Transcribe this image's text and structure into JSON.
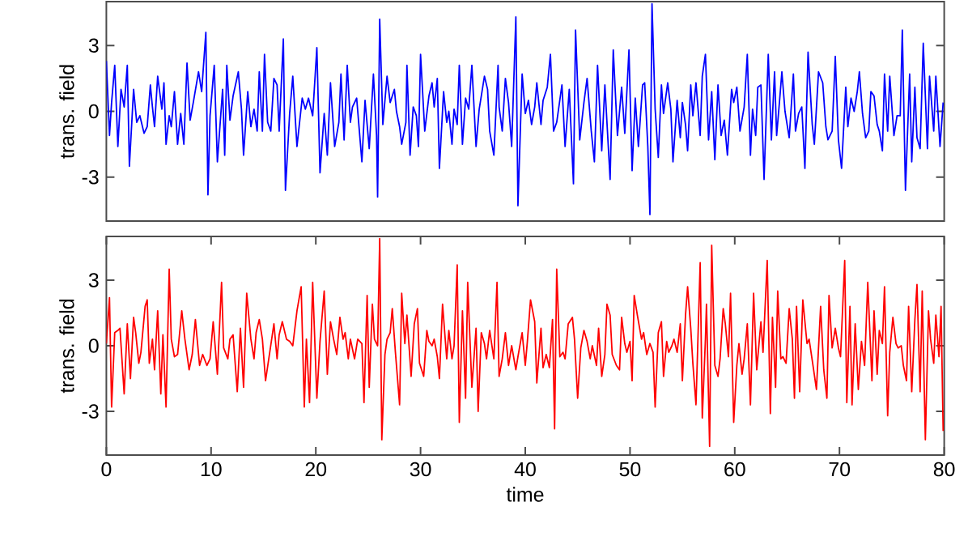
{
  "chart_data": [
    {
      "type": "line",
      "ylabel": "trans. field",
      "xlim": [
        0,
        80
      ],
      "ylim": [
        -5,
        5
      ],
      "yticks": [
        -3,
        0,
        3
      ],
      "tick_labels": "y",
      "series": [
        {
          "color": "#0000ff",
          "x": [
            0.0,
            0.3,
            0.5,
            0.8,
            1.1,
            1.4,
            1.7,
            2.0,
            2.2,
            2.6,
            2.9,
            3.2,
            3.6,
            3.9,
            4.2,
            4.4,
            4.6,
            4.9,
            5.3,
            5.5,
            5.7,
            6.0,
            6.2,
            6.5,
            6.8,
            7.1,
            7.4,
            7.7,
            8.0,
            8.3,
            8.8,
            9.1,
            9.5,
            9.7,
            9.9,
            10.3,
            10.6,
            11.1,
            11.3,
            11.5,
            11.8,
            12.1,
            12.6,
            12.9,
            13.1,
            13.5,
            13.8,
            14.1,
            14.4,
            14.6,
            14.9,
            15.1,
            15.4,
            15.7,
            16.0,
            16.3,
            16.5,
            16.9,
            17.1,
            17.5,
            17.8,
            18.2,
            18.7,
            19.0,
            19.3,
            19.7,
            20.1,
            20.4,
            20.8,
            21.1,
            21.4,
            21.8,
            22.2,
            22.4,
            22.7,
            23.0,
            23.3,
            23.5,
            23.9,
            24.4,
            24.7,
            25.1,
            25.5,
            25.8,
            25.9,
            26.1,
            26.4,
            26.8,
            27.1,
            27.5,
            27.7,
            28.0,
            28.2,
            28.6,
            28.7,
            29.0,
            29.3,
            29.6,
            29.8,
            30.0,
            30.4,
            30.8,
            31.1,
            31.3,
            31.6,
            31.8,
            32.2,
            32.5,
            32.7,
            33.0,
            33.2,
            33.5,
            33.7,
            34.0,
            34.3,
            34.6,
            34.9,
            35.3,
            35.6,
            36.1,
            36.4,
            36.6,
            37.0,
            37.4,
            37.5,
            37.8,
            38.1,
            38.4,
            38.7,
            39.1,
            39.3,
            39.7,
            40.0,
            40.3,
            40.6,
            40.9,
            41.1,
            41.5,
            41.7,
            42.1,
            42.4,
            42.7,
            43.0,
            43.5,
            43.8,
            44.2,
            44.6,
            44.8,
            45.2,
            45.6,
            45.9,
            46.3,
            46.6,
            46.9,
            47.3,
            47.6,
            48.1,
            48.4,
            48.8,
            49.2,
            49.5,
            49.9,
            50.2,
            50.5,
            50.8,
            51.2,
            51.4,
            51.7,
            51.9,
            52.1,
            52.4,
            52.7,
            53.0,
            53.2,
            53.6,
            53.9,
            54.1,
            54.5,
            54.8,
            55.0,
            55.3,
            55.5,
            55.8,
            56.0,
            56.3,
            56.7,
            56.9,
            57.2,
            57.5,
            57.8,
            58.1,
            58.4,
            58.7,
            59.0,
            59.3,
            59.7,
            59.9,
            60.2,
            60.5,
            60.9,
            61.2,
            61.5,
            61.7,
            62.0,
            62.2,
            62.5,
            62.8,
            63.2,
            63.5,
            63.8,
            64.0,
            64.3,
            64.5,
            64.8,
            65.2,
            65.6,
            65.8,
            66.1,
            66.4,
            66.7,
            67.0,
            67.4,
            67.6,
            68.0,
            68.4,
            68.7,
            68.9,
            69.3,
            69.6,
            69.9,
            70.2,
            70.6,
            70.8,
            71.1,
            71.4,
            71.7,
            71.9,
            72.2,
            72.5,
            72.8,
            73.0,
            73.3,
            73.6,
            73.8,
            74.1,
            74.3,
            74.6,
            74.8,
            75.2,
            75.5,
            75.8,
            76.0,
            76.3,
            76.7,
            76.9,
            77.2,
            77.4,
            77.7,
            78.0,
            78.4,
            78.6,
            79.0,
            79.2,
            79.6,
            79.9
          ],
          "values": [
            2.3,
            -1.1,
            0.4,
            2.1,
            -1.6,
            1.0,
            0.2,
            2.1,
            -2.5,
            1.0,
            -0.5,
            -0.2,
            -1.0,
            -0.7,
            1.2,
            0.2,
            -0.7,
            1.6,
            0.1,
            1.3,
            -1.5,
            -0.2,
            -0.7,
            0.9,
            -1.5,
            -0.1,
            -1.5,
            2.2,
            -0.4,
            0.4,
            1.8,
            0.9,
            3.6,
            -3.8,
            -0.2,
            2.1,
            -2.3,
            1.0,
            -2.0,
            2.1,
            -0.4,
            0.7,
            1.8,
            0.1,
            -2.0,
            0.9,
            -0.7,
            0.1,
            -0.9,
            1.8,
            -0.9,
            2.6,
            -0.5,
            -0.9,
            1.5,
            1.2,
            -0.9,
            3.3,
            -3.6,
            -0.1,
            1.6,
            -1.6,
            0.6,
            0.1,
            0.6,
            -0.2,
            2.9,
            -2.8,
            -0.1,
            -2.0,
            1.3,
            -1.6,
            -0.5,
            1.7,
            -1.3,
            2.1,
            -0.5,
            0.2,
            0.6,
            -2.3,
            0.5,
            -1.7,
            1.7,
            -1.1,
            -3.9,
            4.2,
            -0.6,
            1.6,
            0.4,
            1.0,
            0.0,
            -0.7,
            -1.5,
            -0.5,
            2.1,
            -2.0,
            0.2,
            -0.2,
            -1.6,
            2.6,
            -0.9,
            0.7,
            1.3,
            0.2,
            1.5,
            -2.6,
            0.9,
            -0.5,
            0.0,
            -1.5,
            0.1,
            -0.6,
            2.1,
            -1.5,
            0.6,
            0.1,
            2.1,
            -1.6,
            0.1,
            1.6,
            1.0,
            -0.9,
            -2.0,
            2.1,
            0.2,
            -0.9,
            1.5,
            0.4,
            -1.6,
            4.3,
            -4.3,
            1.7,
            -0.1,
            0.5,
            -0.6,
            0.2,
            1.3,
            -0.6,
            0.5,
            1.1,
            2.6,
            -0.9,
            -0.5,
            1.2,
            -1.6,
            1.0,
            -3.3,
            3.7,
            -1.3,
            0.4,
            1.5,
            -0.9,
            -2.3,
            2.1,
            -1.8,
            1.2,
            -3.1,
            2.8,
            -1.1,
            1.1,
            -1.0,
            2.8,
            -2.7,
            0.6,
            -1.6,
            1.2,
            1.3,
            -1.6,
            -4.7,
            4.9,
            0.1,
            -2.1,
            1.2,
            -0.1,
            1.3,
            0.1,
            -2.3,
            0.5,
            -1.2,
            0.4,
            -0.6,
            -1.8,
            1.2,
            -0.2,
            1.3,
            -1.1,
            1.6,
            2.6,
            -1.3,
            0.9,
            -2.2,
            1.2,
            -1.1,
            -0.4,
            -2.0,
            1.0,
            0.4,
            1.1,
            -0.9,
            0.2,
            2.6,
            -2.0,
            0.1,
            -1.1,
            1.1,
            1.2,
            -3.1,
            2.6,
            -1.3,
            1.8,
            -1.1,
            0.6,
            1.8,
            0.0,
            -1.2,
            1.7,
            -0.9,
            -0.1,
            0.2,
            -2.6,
            2.7,
            -0.6,
            -1.5,
            1.8,
            1.3,
            -0.7,
            -1.3,
            -0.9,
            2.5,
            -1.3,
            -2.6,
            1.1,
            -0.7,
            0.6,
            0.0,
            0.9,
            1.8,
            -0.1,
            -1.2,
            -0.9,
            0.9,
            0.7,
            -0.6,
            -0.9,
            -1.8,
            1.7,
            -0.9,
            1.6,
            -1.1,
            -0.2,
            -0.2,
            3.7,
            -3.6,
            1.7,
            -2.3,
            1.1,
            -1.2,
            -1.7,
            3.1,
            -1.7,
            1.6,
            -0.9,
            1.6,
            -1.6,
            0.4
          ]
        }
      ]
    },
    {
      "type": "line",
      "xlabel": "time",
      "ylabel": "trans. field",
      "xlim": [
        0,
        80
      ],
      "xticks": [
        0,
        10,
        20,
        30,
        40,
        50,
        60,
        70,
        80
      ],
      "ylim": [
        -5,
        5
      ],
      "yticks": [
        -3,
        0,
        3
      ],
      "series": [
        {
          "color": "#ff0000",
          "x": [
            0.0,
            0.3,
            0.5,
            0.8,
            1.1,
            1.3,
            1.7,
            2.0,
            2.3,
            2.6,
            2.8,
            3.1,
            3.3,
            3.7,
            3.9,
            4.1,
            4.4,
            4.6,
            4.9,
            5.2,
            5.4,
            5.7,
            6.0,
            6.2,
            6.5,
            6.8,
            7.2,
            7.5,
            7.9,
            8.2,
            8.5,
            8.9,
            9.2,
            9.6,
            9.9,
            10.2,
            10.6,
            11.0,
            11.2,
            11.6,
            11.8,
            12.1,
            12.5,
            12.8,
            13.1,
            13.4,
            13.8,
            14.1,
            14.3,
            14.6,
            14.9,
            15.2,
            15.6,
            16.0,
            16.3,
            16.5,
            16.8,
            17.2,
            17.5,
            17.8,
            18.2,
            18.6,
            18.9,
            19.1,
            19.4,
            19.7,
            20.1,
            20.4,
            20.8,
            21.1,
            21.4,
            21.7,
            22.0,
            22.3,
            22.6,
            22.8,
            23.1,
            23.3,
            23.7,
            24.0,
            24.4,
            24.6,
            24.9,
            25.1,
            25.4,
            25.6,
            25.9,
            26.1,
            26.3,
            26.6,
            26.8,
            27.1,
            27.3,
            27.6,
            28.0,
            28.2,
            28.5,
            28.7,
            29.1,
            29.4,
            29.7,
            29.9,
            30.3,
            30.6,
            30.8,
            31.1,
            31.3,
            31.6,
            31.8,
            32.1,
            32.5,
            32.7,
            33.0,
            33.2,
            33.5,
            33.7,
            34.0,
            34.3,
            34.5,
            34.9,
            35.3,
            35.5,
            35.8,
            36.1,
            36.3,
            36.6,
            37.0,
            37.3,
            37.5,
            37.8,
            38.1,
            38.4,
            38.7,
            39.1,
            39.3,
            39.7,
            40.0,
            40.2,
            40.5,
            40.9,
            41.1,
            41.5,
            41.7,
            42.0,
            42.3,
            42.6,
            42.8,
            43.0,
            43.3,
            43.6,
            43.8,
            44.1,
            44.5,
            44.7,
            45.0,
            45.3,
            45.6,
            45.9,
            46.2,
            46.4,
            46.8,
            47.0,
            47.3,
            47.6,
            47.8,
            48.1,
            48.3,
            48.7,
            49.0,
            49.2,
            49.5,
            49.7,
            50.0,
            50.2,
            50.4,
            50.7,
            51.1,
            51.3,
            51.6,
            51.9,
            52.2,
            52.4,
            52.7,
            53.0,
            53.2,
            53.5,
            53.7,
            54.0,
            54.2,
            54.5,
            54.8,
            55.0,
            55.3,
            55.5,
            55.8,
            56.0,
            56.3,
            56.7,
            56.9,
            57.2,
            57.3,
            57.6,
            57.8,
            58.1,
            58.4,
            58.6,
            58.9,
            59.1,
            59.4,
            59.6,
            59.9,
            60.2,
            60.4,
            60.7,
            60.9,
            61.2,
            61.5,
            61.8,
            62.1,
            62.5,
            62.7,
            63.1,
            63.4,
            63.6,
            63.9,
            64.1,
            64.4,
            64.6,
            64.9,
            65.2,
            65.5,
            65.7,
            65.9,
            66.2,
            66.5,
            66.9,
            67.1,
            67.5,
            67.8,
            68.2,
            68.5,
            68.8,
            69.0,
            69.3,
            69.6,
            69.9,
            70.1,
            70.5,
            70.7,
            71.0,
            71.2,
            71.5,
            71.8,
            72.1,
            72.4,
            72.7,
            73.1,
            73.3,
            73.6,
            73.8,
            74.1,
            74.3,
            74.6,
            74.8,
            75.1,
            75.4,
            75.6,
            75.9,
            76.1,
            76.4,
            76.6,
            76.9,
            77.2,
            77.4,
            77.7,
            77.9,
            78.2,
            78.5,
            78.7,
            79.0,
            79.2,
            79.5,
            79.7,
            79.9
          ],
          "values": [
            0.1,
            2.2,
            -2.8,
            0.6,
            0.7,
            0.8,
            -2.2,
            1.0,
            -1.5,
            1.3,
            0.6,
            -0.8,
            -0.3,
            1.8,
            2.1,
            -0.8,
            0.3,
            -1.1,
            1.6,
            -2.2,
            0.5,
            -2.8,
            3.5,
            0.3,
            -0.5,
            -0.4,
            1.6,
            0.3,
            -1.1,
            -0.4,
            1.2,
            -0.9,
            -0.4,
            -0.9,
            -0.6,
            1.1,
            -1.3,
            2.9,
            -0.1,
            -0.6,
            0.3,
            0.5,
            -2.1,
            0.8,
            -1.9,
            2.4,
            0.3,
            -0.6,
            0.6,
            1.2,
            0.3,
            -1.6,
            -0.3,
            1.0,
            -0.6,
            0.5,
            1.1,
            0.3,
            0.2,
            0.0,
            1.6,
            2.7,
            -2.8,
            0.3,
            -2.6,
            2.9,
            -2.4,
            0.2,
            2.5,
            -1.3,
            1.1,
            0.3,
            -0.4,
            1.3,
            0.3,
            0.6,
            -0.6,
            0.3,
            -0.6,
            0.3,
            0.1,
            -2.6,
            2.3,
            -1.9,
            1.9,
            0.3,
            0.0,
            4.9,
            -4.3,
            -0.4,
            0.3,
            0.6,
            1.7,
            -0.3,
            -2.7,
            2.4,
            0.1,
            1.4,
            -1.4,
            1.0,
            1.7,
            -0.8,
            -1.4,
            0.7,
            0.2,
            0.0,
            0.3,
            -0.5,
            -1.5,
            1.9,
            -0.6,
            0.7,
            -0.6,
            0.0,
            3.7,
            -3.5,
            1.6,
            -2.4,
            2.9,
            -1.9,
            0.8,
            -3.0,
            0.6,
            0.1,
            -0.6,
            0.7,
            -0.6,
            2.9,
            -1.4,
            -0.6,
            0.6,
            -0.9,
            0.0,
            -1.1,
            -0.5,
            0.6,
            -0.9,
            0.2,
            2.1,
            1.1,
            -1.7,
            0.8,
            -1.0,
            -0.4,
            -1.0,
            1.2,
            -3.8,
            3.5,
            -0.5,
            -0.3,
            -0.6,
            1.0,
            1.3,
            0.3,
            -2.4,
            -0.1,
            0.7,
            0.2,
            -0.6,
            0.0,
            -0.9,
            0.8,
            -1.4,
            -0.4,
            1.9,
            1.4,
            -0.4,
            -0.9,
            -1.1,
            1.3,
            0.1,
            -0.3,
            0.2,
            -1.6,
            2.3,
            1.4,
            0.3,
            0.6,
            -0.4,
            0.1,
            -0.3,
            -2.8,
            0.6,
            1.1,
            -1.4,
            0.2,
            -0.3,
            0.0,
            0.3,
            -0.3,
            1.0,
            -1.6,
            1.4,
            2.7,
            0.8,
            -0.8,
            -2.7,
            3.8,
            -3.3,
            0.3,
            1.9,
            -4.6,
            4.6,
            -0.9,
            -1.4,
            -0.6,
            1.7,
            1.0,
            -0.5,
            2.4,
            -3.5,
            -0.9,
            0.1,
            -1.3,
            -0.6,
            1.0,
            -2.7,
            2.4,
            -1.1,
            1.1,
            -0.3,
            3.9,
            -3.1,
            1.3,
            -1.9,
            2.5,
            -0.6,
            -0.5,
            -0.8,
            1.7,
            0.3,
            -2.4,
            1.8,
            -2.1,
            2.1,
            0.1,
            0.3,
            -1.0,
            -2.0,
            1.8,
            -1.1,
            -2.4,
            2.3,
            -0.1,
            0.8,
            -0.1,
            -0.5,
            3.9,
            -2.6,
            1.8,
            -2.7,
            1.0,
            -2.0,
            0.2,
            -0.9,
            2.9,
            -1.6,
            1.6,
            -1.3,
            0.7,
            0.1,
            2.7,
            -3.2,
            -0.3,
            1.3,
            0.1,
            -0.1,
            0.0,
            -0.9,
            -1.6,
            1.8,
            -2.1,
            1.2,
            2.8,
            -2.1,
            2.5,
            -4.3,
            1.6,
            0.3,
            -0.8,
            1.4,
            -0.5,
            1.8,
            -3.9
          ]
        }
      ]
    }
  ]
}
